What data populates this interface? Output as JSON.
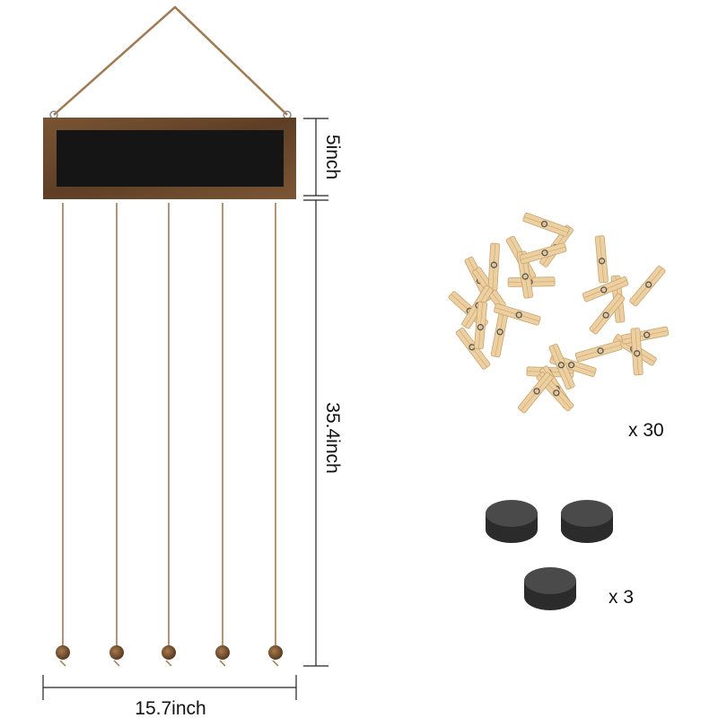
{
  "dimensions": {
    "frame_height": "5inch",
    "total_length": "35.4inch",
    "width": "15.7inch"
  },
  "accessories": {
    "clips_quantity": "x 30",
    "magnets_quantity": "x 3"
  },
  "colors": {
    "wood_frame": "#6b4a2e",
    "chalkboard": "#151515",
    "twine": "#a07a52",
    "clip_wood": "#ecd0a2",
    "magnet": "#3a3a3a"
  }
}
